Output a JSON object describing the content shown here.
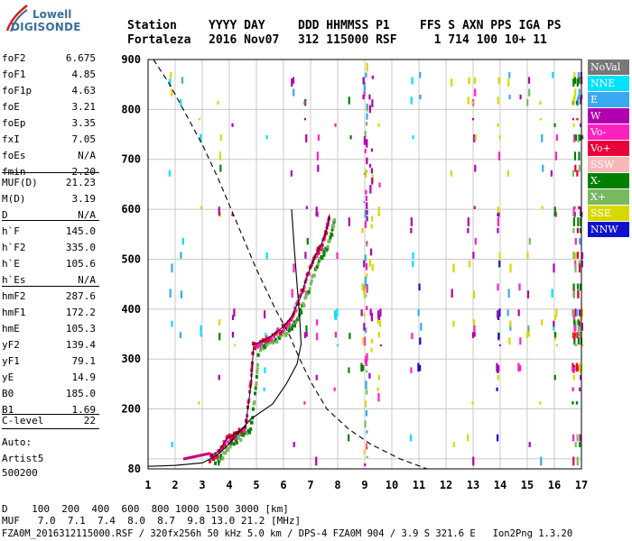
{
  "logo": {
    "line1": "Lowell",
    "line2": "DIGISONDE"
  },
  "header": {
    "labels": [
      "Station",
      "YYYY DAY",
      "DDD HHMMSS P1",
      "FFS S AXN PPS IGA PS"
    ],
    "values": [
      "Fortaleza",
      "2016 Nov07",
      "312 115000 RSF",
      "  1 714 100 10+ 11"
    ]
  },
  "params": {
    "group1": [
      {
        "name": "foF2",
        "value": "6.675"
      },
      {
        "name": "foF1",
        "value": "4.85"
      },
      {
        "name": "foF1p",
        "value": "4.63"
      },
      {
        "name": "foE",
        "value": "3.21"
      },
      {
        "name": "foEp",
        "value": "3.35"
      },
      {
        "name": "fxI",
        "value": "7.05"
      },
      {
        "name": "foEs",
        "value": "N/A"
      },
      {
        "name": "fmin",
        "value": "2.20"
      }
    ],
    "group2": [
      {
        "name": "MUF(D)",
        "value": "21.23"
      },
      {
        "name": "M(D)",
        "value": "3.19"
      },
      {
        "name": "D",
        "value": "N/A"
      }
    ],
    "group3": [
      {
        "name": "h`F",
        "value": "145.0"
      },
      {
        "name": "h`F2",
        "value": "335.0"
      },
      {
        "name": "h`E",
        "value": "105.6"
      },
      {
        "name": "h`Es",
        "value": "N/A"
      }
    ],
    "group4": [
      {
        "name": "hmF2",
        "value": "287.6"
      },
      {
        "name": "hmF1",
        "value": "172.2"
      },
      {
        "name": "hmE",
        "value": "105.3"
      },
      {
        "name": "yF2",
        "value": "139.4"
      },
      {
        "name": "yF1",
        "value": "79.1"
      },
      {
        "name": "yE",
        "value": "14.9"
      },
      {
        "name": "B0",
        "value": "185.0"
      },
      {
        "name": "B1",
        "value": "1.69"
      }
    ],
    "group5": [
      {
        "name": "C-level",
        "value": "22"
      }
    ],
    "auto": [
      "Auto:",
      "Artist5",
      "500200"
    ]
  },
  "legend": [
    {
      "label": "NoVal",
      "color": "#777777"
    },
    {
      "label": "NNE",
      "color": "#00e0ff"
    },
    {
      "label": "E",
      "color": "#3aa8f0"
    },
    {
      "label": "W",
      "color": "#b000b0"
    },
    {
      "label": "Vo-",
      "color": "#ff20c0"
    },
    {
      "label": "Vo+",
      "color": "#e8003a"
    },
    {
      "label": "SSW",
      "color": "#f8b8b8"
    },
    {
      "label": "X-",
      "color": "#008000"
    },
    {
      "label": "X+",
      "color": "#78b860"
    },
    {
      "label": "SSE",
      "color": "#d8d800"
    },
    {
      "label": "NNW",
      "color": "#1010d0"
    }
  ],
  "chart_data": {
    "type": "scatter",
    "x_ticks": [
      "1",
      "2",
      "3",
      "4",
      "5",
      "6",
      "7",
      "8",
      "9",
      "10",
      "11",
      "12",
      "13",
      "14",
      "15",
      "16",
      "17"
    ],
    "y_ticks": [
      "80",
      "200",
      "300",
      "400",
      "500",
      "600",
      "700",
      "800",
      "900"
    ],
    "xlim": [
      1,
      17
    ],
    "ylim": [
      80,
      900
    ],
    "grid": true,
    "traces": {
      "profile_solid": [
        [
          1.0,
          85
        ],
        [
          2.0,
          87
        ],
        [
          3.0,
          92
        ],
        [
          3.3,
          100
        ],
        [
          3.6,
          110
        ],
        [
          3.9,
          125
        ],
        [
          4.3,
          150
        ],
        [
          4.8,
          180
        ],
        [
          5.6,
          210
        ],
        [
          6.1,
          250
        ],
        [
          6.5,
          290
        ],
        [
          6.65,
          330
        ],
        [
          6.6,
          380
        ],
        [
          6.5,
          450
        ],
        [
          6.4,
          520
        ],
        [
          6.3,
          600
        ]
      ],
      "profile_dashed": [
        [
          1.2,
          900
        ],
        [
          1.8,
          850
        ],
        [
          2.4,
          790
        ],
        [
          3.0,
          730
        ],
        [
          3.6,
          660
        ],
        [
          4.3,
          570
        ],
        [
          5.0,
          480
        ],
        [
          5.7,
          400
        ],
        [
          6.2,
          350
        ],
        [
          6.6,
          300
        ],
        [
          7.0,
          255
        ],
        [
          7.6,
          200
        ],
        [
          8.4,
          160
        ],
        [
          9.2,
          130
        ],
        [
          10.3,
          100
        ],
        [
          11.3,
          80
        ]
      ],
      "virtual_height_curve": [
        [
          3.3,
          105
        ],
        [
          3.6,
          115
        ],
        [
          3.9,
          140
        ],
        [
          4.2,
          150
        ],
        [
          4.6,
          165
        ],
        [
          4.8,
          250
        ],
        [
          4.9,
          330
        ],
        [
          5.2,
          335
        ],
        [
          5.6,
          348
        ],
        [
          6.0,
          365
        ],
        [
          6.3,
          385
        ],
        [
          6.6,
          420
        ],
        [
          6.9,
          470
        ],
        [
          7.2,
          510
        ],
        [
          7.4,
          530
        ],
        [
          7.6,
          560
        ],
        [
          7.7,
          590
        ]
      ]
    }
  }
}
